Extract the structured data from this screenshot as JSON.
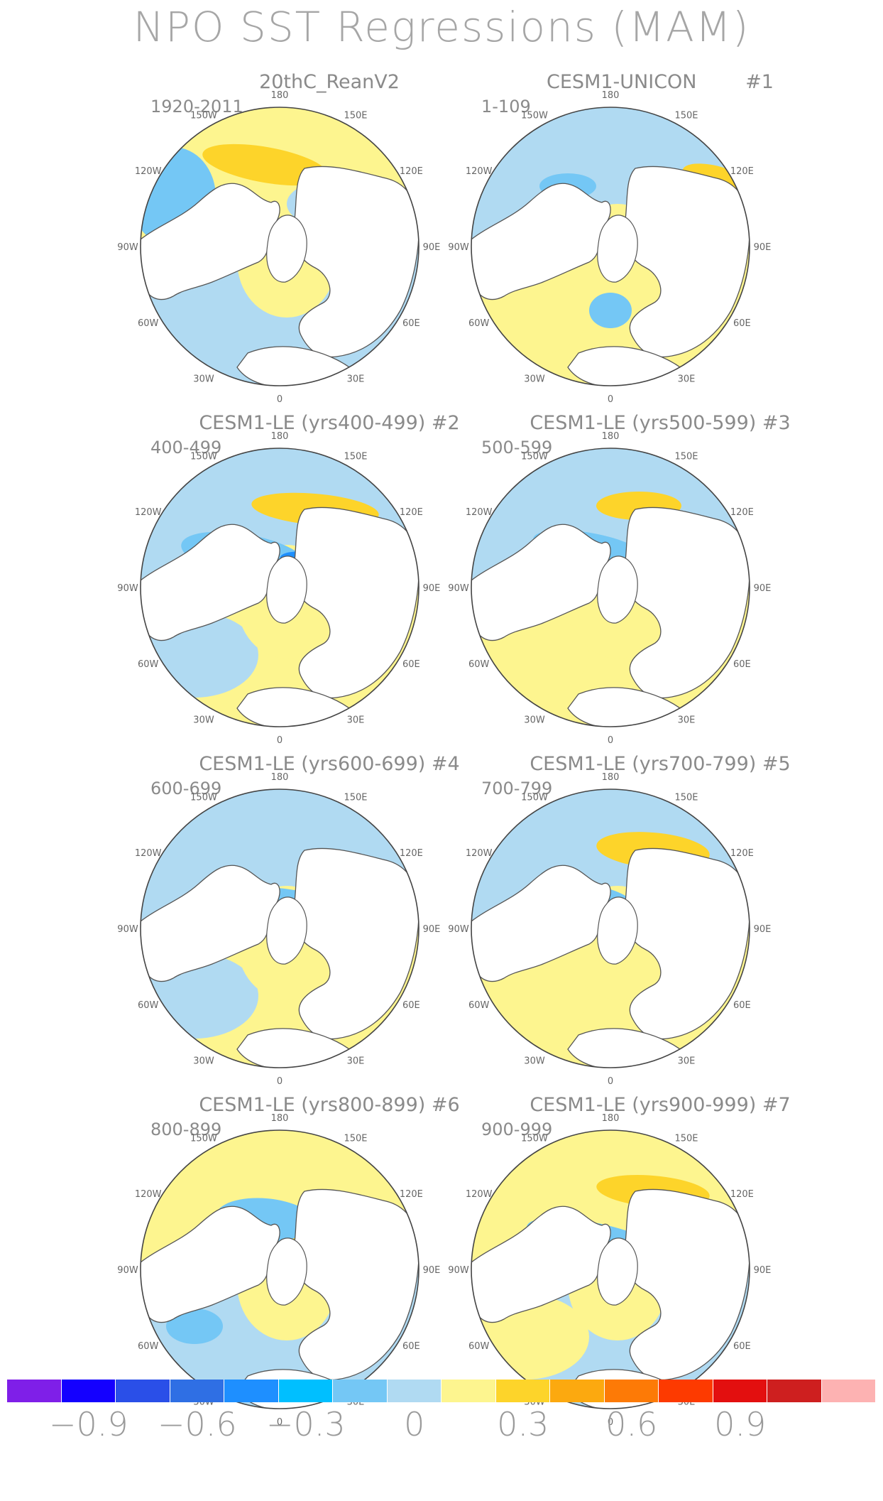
{
  "title": "NPO SST Regressions (MAM)",
  "panels": [
    {
      "title": "20thC_ReanV2",
      "period": "1920-2011"
    },
    {
      "title": "CESM1-UNICON        #1",
      "period": "1-109"
    },
    {
      "title": "CESM1-LE (yrs400-499) #2",
      "period": "400-499"
    },
    {
      "title": "CESM1-LE (yrs500-599) #3",
      "period": "500-599"
    },
    {
      "title": "CESM1-LE (yrs600-699) #4",
      "period": "600-699"
    },
    {
      "title": "CESM1-LE (yrs700-799) #5",
      "period": "700-799"
    },
    {
      "title": "CESM1-LE (yrs800-899) #6",
      "period": "800-899"
    },
    {
      "title": "CESM1-LE (yrs900-999) #7",
      "period": "900-999"
    }
  ],
  "longitude_labels": [
    "180",
    "150E",
    "120E",
    "90E",
    "60E",
    "30E",
    "0",
    "30W",
    "60W",
    "90W",
    "120W",
    "150W"
  ],
  "colorbar": {
    "colors": [
      "#7f1fe8",
      "#1400ff",
      "#2a4fe8",
      "#2f6fe4",
      "#1e8fff",
      "#00bfff",
      "#74c7f5",
      "#b0daf2",
      "#fdf58f",
      "#fdd42a",
      "#fca90f",
      "#fd7a06",
      "#fd3a00",
      "#e30f0f",
      "#ce1f1f",
      "#fdb2b2"
    ],
    "tick_labels": [
      "−0.9",
      "−0.6",
      "−0.3",
      "0",
      "0.3",
      "0.6",
      "0.9"
    ]
  }
}
